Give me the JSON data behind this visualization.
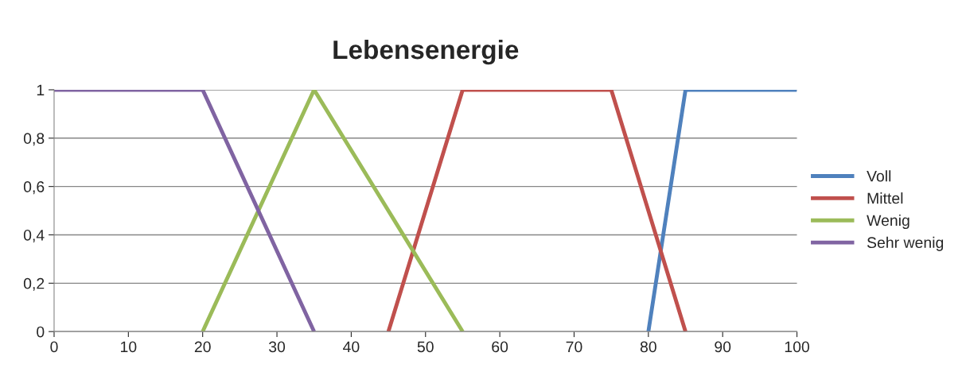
{
  "chart_data": {
    "type": "line",
    "title": "Lebensenergie",
    "series": [
      {
        "name": "Voll",
        "color": "#4f81bd",
        "x": [
          80,
          85,
          100
        ],
        "values": [
          0,
          1,
          1
        ]
      },
      {
        "name": "Mittel",
        "color": "#c0504d",
        "x": [
          45,
          55,
          75,
          85
        ],
        "values": [
          0,
          1,
          1,
          0
        ]
      },
      {
        "name": "Wenig",
        "color": "#9bbb59",
        "x": [
          20,
          35,
          55
        ],
        "values": [
          0,
          1,
          0
        ]
      },
      {
        "name": "Sehr wenig",
        "color": "#8064a2",
        "x": [
          0,
          20,
          35
        ],
        "values": [
          1,
          1,
          0
        ]
      }
    ],
    "xlim": [
      0,
      100
    ],
    "xticks": [
      0,
      10,
      20,
      30,
      40,
      50,
      60,
      70,
      80,
      90,
      100
    ],
    "ylim": [
      0,
      1
    ],
    "yticks": [
      0,
      {
        "value": 0.2,
        "label": "0,2"
      },
      {
        "value": 0.4,
        "label": "0,4"
      },
      {
        "value": 0.6,
        "label": "0,6"
      },
      {
        "value": 0.8,
        "label": "0,8"
      },
      1
    ],
    "grid": "y",
    "legend": "right",
    "marker": "none",
    "line_style": "solid"
  }
}
